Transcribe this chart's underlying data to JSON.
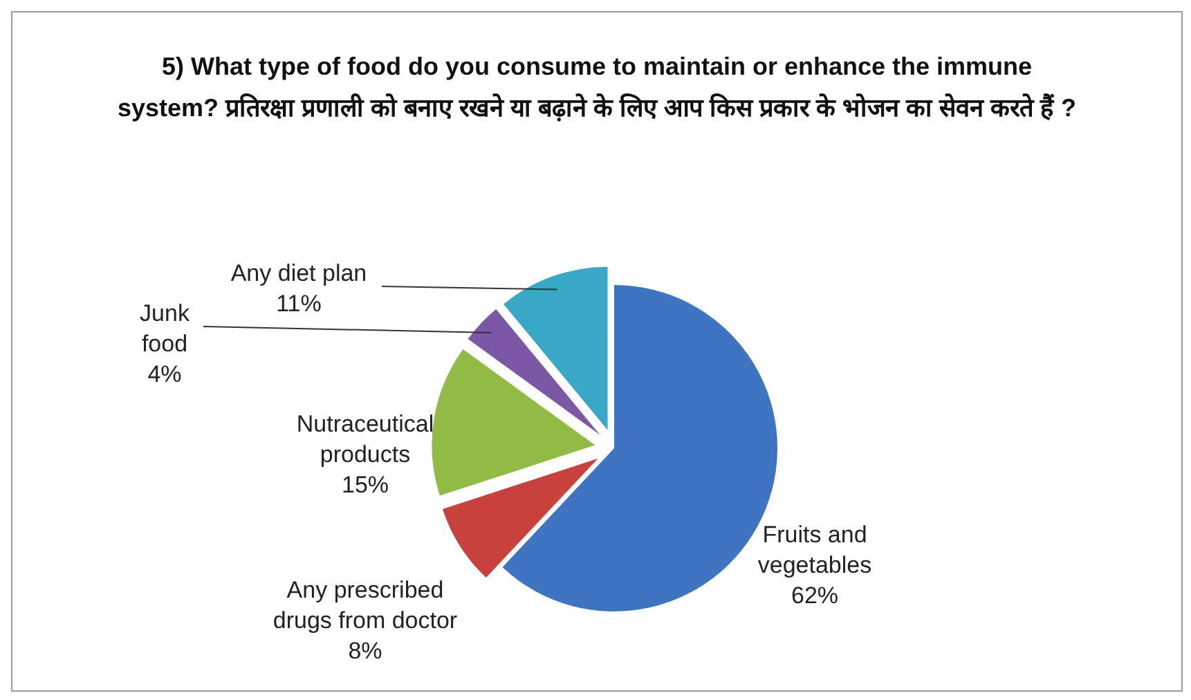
{
  "chart_data": {
    "type": "pie",
    "title": "5) What type of food do you consume to maintain or enhance the immune system?   प्रतिरक्षा प्रणाली को बनाए रखने या बढ़ाने के लिए आप किस प्रकार के भोजन का सेवन करते हैं ?",
    "categories": [
      "Fruits and vegetables",
      "Any prescribed drugs from doctor",
      "Nutraceutical products",
      "Junk food",
      "Any diet plan"
    ],
    "values": [
      62,
      8,
      15,
      4,
      11
    ],
    "colors": [
      "#3f74c2",
      "#c9413d",
      "#92bb45",
      "#7b57a6",
      "#38a8c6"
    ],
    "value_labels": [
      "62%",
      "8%",
      "15%",
      "4%",
      "11%"
    ],
    "legend": false
  }
}
